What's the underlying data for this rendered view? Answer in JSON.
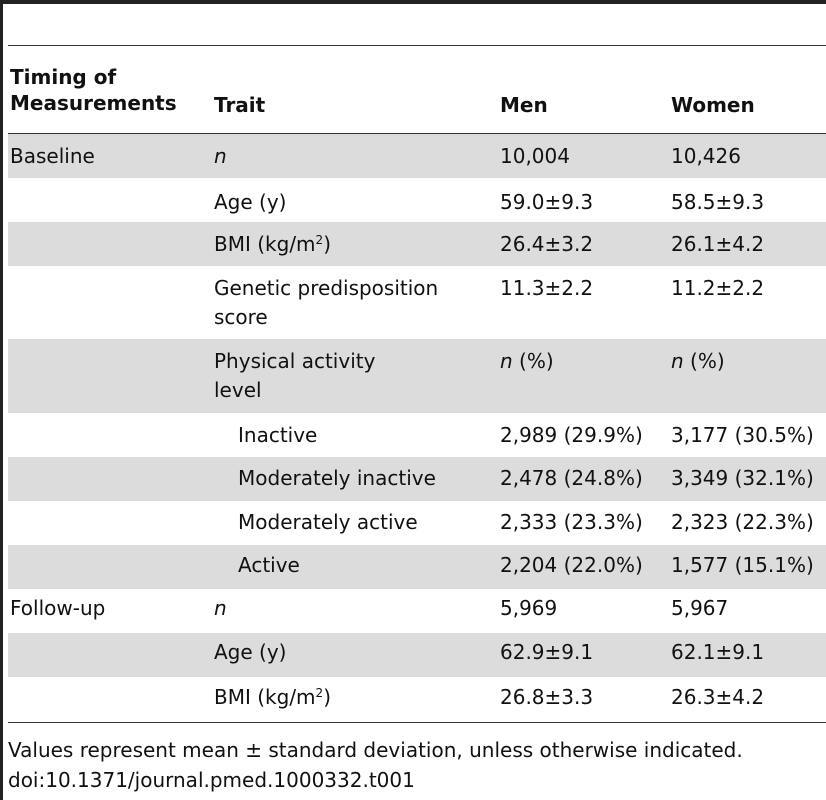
{
  "header": {
    "col1_line1": "Timing of",
    "col1_line2": "Measurements",
    "col2": "Trait",
    "col3": "Men",
    "col4": "Women"
  },
  "rows": [
    {
      "timing": "Baseline",
      "trait": "n",
      "men": "10,004",
      "women": "10,426"
    },
    {
      "timing": "",
      "trait": "Age (y)",
      "men": "59.0±9.3",
      "women": "58.5±9.3"
    },
    {
      "timing": "",
      "trait_pre": "BMI (kg/m",
      "trait_sup": "2",
      "trait_post": ")",
      "men": "26.4±3.2",
      "women": "26.1±4.2"
    },
    {
      "timing": "",
      "trait_line1": "Genetic predisposition",
      "trait_line2": "score",
      "men": "11.3±2.2",
      "women": "11.2±2.2"
    },
    {
      "timing": "",
      "trait_line1": "Physical activity",
      "trait_line2": "level",
      "men_it": "n",
      "men_rest": " (%)",
      "women_it": "n",
      "women_rest": " (%)"
    },
    {
      "timing": "",
      "trait": "Inactive",
      "men": "2,989 (29.9%)",
      "women": "3,177 (30.5%)"
    },
    {
      "timing": "",
      "trait": "Moderately inactive",
      "men": "2,478 (24.8%)",
      "women": "3,349 (32.1%)"
    },
    {
      "timing": "",
      "trait": "Moderately active",
      "men": "2,333 (23.3%)",
      "women": "2,323 (22.3%)"
    },
    {
      "timing": "",
      "trait": "Active",
      "men": "2,204 (22.0%)",
      "women": "1,577 (15.1%)"
    },
    {
      "timing": "Follow-up",
      "trait": "n",
      "men": "5,969",
      "women": "5,967"
    },
    {
      "timing": "",
      "trait": "Age (y)",
      "men": "62.9±9.1",
      "women": "62.1±9.1"
    },
    {
      "timing": "",
      "trait_pre": "BMI (kg/m",
      "trait_sup": "2",
      "trait_post": ")",
      "men": "26.8±3.3",
      "women": "26.3±4.2"
    }
  ],
  "footnote": "Values represent mean ± standard deviation, unless otherwise indicated.",
  "doi": "doi:10.1371/journal.pmed.1000332.t001"
}
